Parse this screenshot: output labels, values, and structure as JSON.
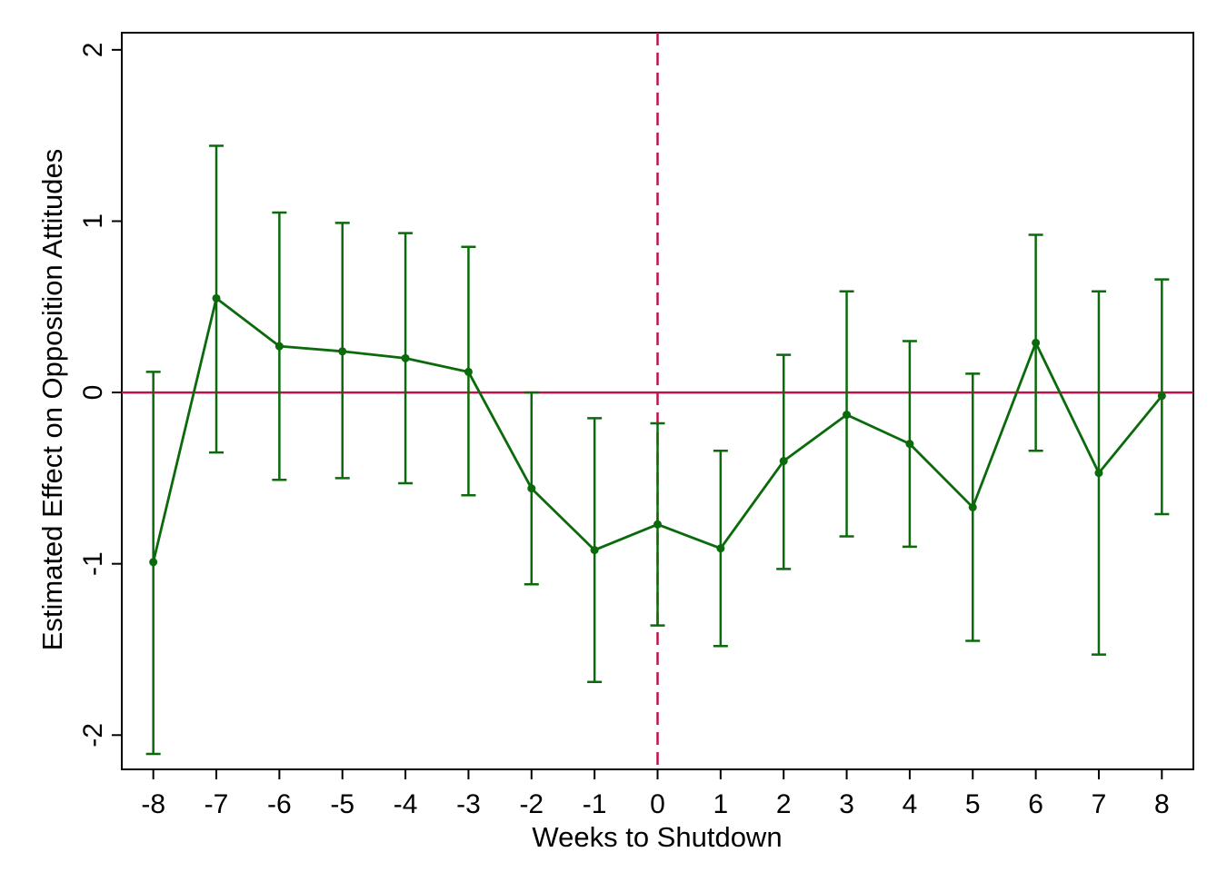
{
  "colors": {
    "series": "#0b6a0b",
    "reference": "#c0124a",
    "frame": "#000000",
    "background": "#ffffff"
  },
  "chart_data": {
    "type": "line",
    "xlabel": "Weeks to Shutdown",
    "ylabel": "Estimated Effect on Opposition Attitudes",
    "xlim": [
      -8.5,
      8.5
    ],
    "ylim": [
      -2.2,
      2.1
    ],
    "x_ticks": [
      -8,
      -7,
      -6,
      -5,
      -4,
      -3,
      -2,
      -1,
      0,
      1,
      2,
      3,
      4,
      5,
      6,
      7,
      8
    ],
    "y_ticks": [
      -2,
      -1,
      0,
      1,
      2
    ],
    "grid": false,
    "reference_lines": [
      {
        "orientation": "horizontal",
        "value": 0,
        "style": "solid"
      },
      {
        "orientation": "vertical",
        "value": 0,
        "style": "dashed"
      }
    ],
    "series": [
      {
        "points": [
          {
            "x": -8,
            "y": -0.99,
            "lower": -2.11,
            "upper": 0.12
          },
          {
            "x": -7,
            "y": 0.55,
            "lower": -0.35,
            "upper": 1.44
          },
          {
            "x": -6,
            "y": 0.27,
            "lower": -0.51,
            "upper": 1.05
          },
          {
            "x": -5,
            "y": 0.24,
            "lower": -0.5,
            "upper": 0.99
          },
          {
            "x": -4,
            "y": 0.2,
            "lower": -0.53,
            "upper": 0.93
          },
          {
            "x": -3,
            "y": 0.12,
            "lower": -0.6,
            "upper": 0.85
          },
          {
            "x": -2,
            "y": -0.56,
            "lower": -1.12,
            "upper": 0.0
          },
          {
            "x": -1,
            "y": -0.92,
            "lower": -1.69,
            "upper": -0.15
          },
          {
            "x": 0,
            "y": -0.77,
            "lower": -1.36,
            "upper": -0.18
          },
          {
            "x": 1,
            "y": -0.91,
            "lower": -1.48,
            "upper": -0.34
          },
          {
            "x": 2,
            "y": -0.4,
            "lower": -1.03,
            "upper": 0.22
          },
          {
            "x": 3,
            "y": -0.13,
            "lower": -0.84,
            "upper": 0.59
          },
          {
            "x": 4,
            "y": -0.3,
            "lower": -0.9,
            "upper": 0.3
          },
          {
            "x": 5,
            "y": -0.67,
            "lower": -1.45,
            "upper": 0.11
          },
          {
            "x": 6,
            "y": 0.29,
            "lower": -0.34,
            "upper": 0.92
          },
          {
            "x": 7,
            "y": -0.47,
            "lower": -1.53,
            "upper": 0.59
          },
          {
            "x": 8,
            "y": -0.02,
            "lower": -0.71,
            "upper": 0.66
          }
        ]
      }
    ]
  }
}
